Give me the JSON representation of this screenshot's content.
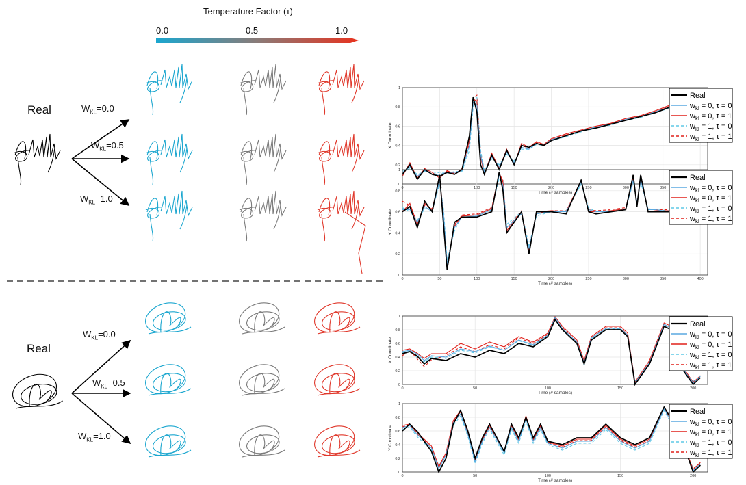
{
  "colorbar": {
    "title": "Temperature Factor (τ)",
    "ticks": [
      "0.0",
      "0.5",
      "1.0"
    ],
    "color_start": "#1aa6cf",
    "color_end": "#e8321e"
  },
  "sections": [
    {
      "real_label": "Real",
      "weights": [
        {
          "prefix": "W",
          "sub": "KL",
          "value": "=0.0"
        },
        {
          "prefix": "W",
          "sub": "KL",
          "value": "=0.5"
        },
        {
          "prefix": "W",
          "sub": "KL",
          "value": "=1.0"
        }
      ]
    },
    {
      "real_label": "Real",
      "weights": [
        {
          "prefix": "W",
          "sub": "KL",
          "value": "=0.0"
        },
        {
          "prefix": "W",
          "sub": "KL",
          "value": "=0.5"
        },
        {
          "prefix": "W",
          "sub": "KL",
          "value": "=1.0"
        }
      ]
    }
  ],
  "signature_colors": [
    "#1aa6cf",
    "#7a7a7a",
    "#e0372a"
  ],
  "chart_data": [
    {
      "type": "line",
      "ylabel": "X Coordinate",
      "xlabel": "Time (# samples)",
      "xlim": [
        0,
        410
      ],
      "ylim": [
        0,
        1
      ],
      "xticks": [
        0,
        50,
        100,
        150,
        200,
        250,
        300,
        350,
        400
      ],
      "yticks": [
        0,
        0.2,
        0.4,
        0.6,
        0.8,
        1
      ],
      "grid": true,
      "legend_placement": "top-right",
      "x": [
        0,
        10,
        20,
        30,
        40,
        50,
        60,
        70,
        80,
        90,
        95,
        100,
        105,
        110,
        120,
        130,
        140,
        150,
        160,
        170,
        180,
        190,
        200,
        220,
        240,
        260,
        280,
        300,
        320,
        340,
        360,
        370,
        375
      ],
      "series": [
        {
          "name": "Real",
          "color": "#000000",
          "dash": false,
          "values": [
            0.1,
            0.2,
            0.05,
            0.15,
            0.1,
            0.08,
            0.12,
            0.1,
            0.15,
            0.5,
            0.9,
            0.75,
            0.2,
            0.1,
            0.3,
            0.15,
            0.35,
            0.2,
            0.4,
            0.38,
            0.42,
            0.4,
            0.45,
            0.5,
            0.55,
            0.58,
            0.62,
            0.66,
            0.7,
            0.74,
            0.8,
            0.86,
            0.9
          ]
        },
        {
          "name": "w_kl = 0, τ = 0",
          "color": "#5aa8e0",
          "dash": false,
          "values": [
            0.12,
            0.18,
            0.08,
            0.14,
            0.1,
            0.1,
            0.12,
            0.12,
            0.14,
            0.4,
            0.85,
            0.82,
            0.3,
            0.12,
            0.28,
            0.18,
            0.33,
            0.22,
            0.38,
            0.36,
            0.42,
            0.4,
            0.46,
            0.5,
            0.55,
            0.59,
            0.62,
            0.67,
            0.7,
            0.75,
            0.8,
            0.85,
            0.88
          ]
        },
        {
          "name": "w_kl = 0, τ = 1",
          "color": "#e0201a",
          "dash": false,
          "values": [
            0.08,
            0.22,
            0.06,
            0.16,
            0.12,
            0.06,
            0.14,
            0.1,
            0.16,
            0.45,
            0.88,
            0.86,
            0.28,
            0.1,
            0.32,
            0.16,
            0.36,
            0.2,
            0.42,
            0.38,
            0.44,
            0.41,
            0.47,
            0.52,
            0.56,
            0.6,
            0.63,
            0.68,
            0.71,
            0.76,
            0.82,
            0.87,
            0.9
          ]
        },
        {
          "name": "w_kl = 1, τ = 0",
          "color": "#5fc8e6",
          "dash": true,
          "values": [
            0.14,
            0.16,
            0.1,
            0.13,
            0.11,
            0.12,
            0.11,
            0.13,
            0.13,
            0.35,
            0.8,
            0.9,
            0.35,
            0.14,
            0.26,
            0.2,
            0.31,
            0.24,
            0.36,
            0.36,
            0.41,
            0.4,
            0.45,
            0.49,
            0.54,
            0.58,
            0.61,
            0.66,
            0.69,
            0.74,
            0.79,
            0.84,
            0.87
          ]
        },
        {
          "name": "w_kl = 1, τ = 1",
          "color": "#e0201a",
          "dash": true,
          "values": [
            0.1,
            0.2,
            0.07,
            0.15,
            0.1,
            0.08,
            0.13,
            0.11,
            0.15,
            0.42,
            0.86,
            0.92,
            0.33,
            0.12,
            0.3,
            0.17,
            0.34,
            0.21,
            0.4,
            0.37,
            0.43,
            0.41,
            0.46,
            0.51,
            0.55,
            0.59,
            0.63,
            0.67,
            0.71,
            0.75,
            0.81,
            0.86,
            0.89
          ]
        }
      ]
    },
    {
      "type": "line",
      "ylabel": "Y Coordinate",
      "xlabel": "Time (# samples)",
      "xlim": [
        0,
        410
      ],
      "ylim": [
        0,
        1
      ],
      "xticks": [
        0,
        50,
        100,
        150,
        200,
        250,
        300,
        350,
        400
      ],
      "yticks": [
        0,
        0.2,
        0.4,
        0.6,
        0.8,
        1
      ],
      "grid": true,
      "legend_placement": "top-right",
      "x": [
        0,
        10,
        20,
        30,
        40,
        50,
        55,
        60,
        70,
        80,
        100,
        120,
        130,
        135,
        140,
        160,
        170,
        180,
        200,
        220,
        240,
        250,
        260,
        280,
        300,
        310,
        315,
        320,
        330,
        340,
        360,
        370,
        375
      ],
      "series": [
        {
          "name": "Real",
          "color": "#000000",
          "dash": false,
          "values": [
            0.6,
            0.65,
            0.45,
            0.7,
            0.6,
            0.95,
            0.5,
            0.05,
            0.5,
            0.55,
            0.55,
            0.6,
            0.98,
            0.8,
            0.4,
            0.6,
            0.2,
            0.6,
            0.6,
            0.58,
            0.9,
            0.6,
            0.58,
            0.6,
            0.62,
            0.95,
            0.65,
            0.95,
            0.6,
            0.6,
            0.6,
            0.6,
            0.6
          ]
        },
        {
          "name": "w_kl = 0, τ = 0",
          "color": "#5aa8e0",
          "dash": false,
          "values": [
            0.62,
            0.62,
            0.5,
            0.65,
            0.6,
            0.9,
            0.6,
            0.1,
            0.45,
            0.55,
            0.56,
            0.62,
            0.95,
            0.85,
            0.45,
            0.58,
            0.25,
            0.58,
            0.6,
            0.6,
            0.88,
            0.62,
            0.6,
            0.6,
            0.62,
            0.9,
            0.68,
            0.9,
            0.62,
            0.62,
            0.6,
            0.62,
            0.6
          ]
        },
        {
          "name": "w_kl = 0, τ = 1",
          "color": "#e0201a",
          "dash": false,
          "values": [
            0.6,
            0.68,
            0.48,
            0.68,
            0.62,
            0.92,
            0.58,
            0.08,
            0.48,
            0.56,
            0.57,
            0.63,
            0.97,
            0.88,
            0.42,
            0.6,
            0.22,
            0.6,
            0.61,
            0.6,
            0.9,
            0.6,
            0.6,
            0.61,
            0.63,
            0.93,
            0.66,
            0.93,
            0.6,
            0.61,
            0.61,
            0.62,
            0.6
          ]
        },
        {
          "name": "w_kl = 1, τ = 0",
          "color": "#5fc8e6",
          "dash": true,
          "values": [
            0.64,
            0.6,
            0.52,
            0.63,
            0.62,
            0.86,
            0.65,
            0.14,
            0.42,
            0.56,
            0.57,
            0.63,
            0.92,
            0.9,
            0.48,
            0.6,
            0.28,
            0.56,
            0.6,
            0.61,
            0.86,
            0.64,
            0.6,
            0.61,
            0.63,
            0.88,
            0.7,
            0.88,
            0.63,
            0.62,
            0.61,
            0.63,
            0.61
          ]
        },
        {
          "name": "w_kl = 1, τ = 1",
          "color": "#e0201a",
          "dash": true,
          "values": [
            0.7,
            0.66,
            0.5,
            0.66,
            0.63,
            0.9,
            0.62,
            0.1,
            0.46,
            0.57,
            0.58,
            0.64,
            0.96,
            0.9,
            0.44,
            0.61,
            0.24,
            0.58,
            0.61,
            0.61,
            0.88,
            0.62,
            0.61,
            0.62,
            0.64,
            0.92,
            0.68,
            0.92,
            0.62,
            0.62,
            0.62,
            0.63,
            0.6
          ]
        }
      ]
    },
    {
      "type": "line",
      "ylabel": "X Coordinate",
      "xlabel": "Time (# samples)",
      "xlim": [
        0,
        210
      ],
      "ylim": [
        0,
        1
      ],
      "xticks": [
        0,
        50,
        100,
        150,
        200
      ],
      "yticks": [
        0,
        0.2,
        0.4,
        0.6,
        0.8,
        1
      ],
      "grid": true,
      "legend_placement": "top-right",
      "x": [
        0,
        5,
        10,
        15,
        20,
        30,
        40,
        50,
        60,
        70,
        80,
        90,
        100,
        105,
        110,
        120,
        125,
        130,
        140,
        150,
        155,
        160,
        170,
        180,
        185,
        190,
        200,
        205
      ],
      "series": [
        {
          "name": "Real",
          "color": "#000000",
          "dash": false,
          "values": [
            0.45,
            0.48,
            0.42,
            0.3,
            0.38,
            0.35,
            0.45,
            0.4,
            0.5,
            0.45,
            0.6,
            0.55,
            0.7,
            0.95,
            0.8,
            0.6,
            0.3,
            0.65,
            0.8,
            0.8,
            0.7,
            0.0,
            0.3,
            0.85,
            0.8,
            0.3,
            0.0,
            0.1
          ]
        },
        {
          "name": "w_kl = 0, τ = 0",
          "color": "#5aa8e0",
          "dash": false,
          "values": [
            0.48,
            0.5,
            0.45,
            0.35,
            0.42,
            0.4,
            0.52,
            0.48,
            0.56,
            0.5,
            0.65,
            0.58,
            0.72,
            0.98,
            0.82,
            0.62,
            0.32,
            0.68,
            0.82,
            0.82,
            0.72,
            0.02,
            0.32,
            0.88,
            0.82,
            0.32,
            0.02,
            0.12
          ]
        },
        {
          "name": "w_kl = 0, τ = 1",
          "color": "#e0201a",
          "dash": false,
          "values": [
            0.5,
            0.52,
            0.46,
            0.38,
            0.45,
            0.45,
            0.6,
            0.52,
            0.62,
            0.55,
            0.7,
            0.62,
            0.75,
            0.99,
            0.85,
            0.65,
            0.35,
            0.7,
            0.85,
            0.85,
            0.75,
            0.03,
            0.35,
            0.9,
            0.85,
            0.35,
            0.03,
            0.13
          ]
        },
        {
          "name": "w_kl = 1, τ = 0",
          "color": "#5fc8e6",
          "dash": true,
          "values": [
            0.46,
            0.49,
            0.4,
            0.33,
            0.4,
            0.38,
            0.5,
            0.46,
            0.55,
            0.5,
            0.64,
            0.57,
            0.71,
            0.96,
            0.81,
            0.6,
            0.28,
            0.66,
            0.81,
            0.81,
            0.7,
            0.05,
            0.3,
            0.86,
            0.8,
            0.28,
            0.05,
            0.1
          ]
        },
        {
          "name": "w_kl = 1, τ = 1",
          "color": "#e0201a",
          "dash": true,
          "values": [
            0.42,
            0.5,
            0.38,
            0.26,
            0.36,
            0.42,
            0.55,
            0.48,
            0.58,
            0.52,
            0.68,
            0.6,
            0.73,
            0.97,
            0.83,
            0.62,
            0.3,
            0.68,
            0.83,
            0.83,
            0.72,
            0.04,
            0.32,
            0.88,
            0.82,
            0.3,
            0.04,
            0.11
          ]
        }
      ]
    },
    {
      "type": "line",
      "ylabel": "Y Coordinate",
      "xlabel": "Time (# samples)",
      "xlim": [
        0,
        210
      ],
      "ylim": [
        0,
        1
      ],
      "xticks": [
        0,
        50,
        100,
        150,
        200
      ],
      "yticks": [
        0,
        0.2,
        0.4,
        0.6,
        0.8,
        1
      ],
      "grid": true,
      "legend_placement": "top-right",
      "x": [
        0,
        5,
        10,
        20,
        25,
        30,
        35,
        40,
        45,
        50,
        55,
        60,
        70,
        75,
        80,
        85,
        90,
        95,
        100,
        110,
        120,
        130,
        140,
        150,
        160,
        170,
        180,
        190,
        200,
        205
      ],
      "series": [
        {
          "name": "Real",
          "color": "#000000",
          "dash": false,
          "values": [
            0.6,
            0.7,
            0.6,
            0.3,
            0.0,
            0.2,
            0.7,
            0.9,
            0.6,
            0.2,
            0.5,
            0.7,
            0.3,
            0.7,
            0.5,
            0.8,
            0.5,
            0.7,
            0.45,
            0.4,
            0.5,
            0.5,
            0.7,
            0.5,
            0.4,
            0.5,
            0.95,
            0.6,
            0.0,
            0.1
          ]
        },
        {
          "name": "w_kl = 0, τ = 0",
          "color": "#5aa8e0",
          "dash": false,
          "values": [
            0.65,
            0.68,
            0.55,
            0.35,
            0.05,
            0.25,
            0.72,
            0.85,
            0.55,
            0.15,
            0.45,
            0.65,
            0.28,
            0.65,
            0.45,
            0.78,
            0.45,
            0.65,
            0.42,
            0.35,
            0.45,
            0.45,
            0.65,
            0.45,
            0.35,
            0.45,
            0.92,
            0.55,
            0.02,
            0.12
          ]
        },
        {
          "name": "w_kl = 0, τ = 1",
          "color": "#e0201a",
          "dash": false,
          "values": [
            0.68,
            0.7,
            0.58,
            0.38,
            0.08,
            0.28,
            0.75,
            0.9,
            0.58,
            0.18,
            0.48,
            0.68,
            0.3,
            0.68,
            0.48,
            0.82,
            0.48,
            0.68,
            0.44,
            0.38,
            0.48,
            0.48,
            0.68,
            0.48,
            0.38,
            0.48,
            0.95,
            0.58,
            0.04,
            0.14
          ]
        },
        {
          "name": "w_kl = 1, τ = 0",
          "color": "#5fc8e6",
          "dash": true,
          "values": [
            0.62,
            0.66,
            0.52,
            0.32,
            0.1,
            0.22,
            0.68,
            0.82,
            0.52,
            0.12,
            0.42,
            0.62,
            0.25,
            0.62,
            0.42,
            0.75,
            0.42,
            0.62,
            0.4,
            0.32,
            0.42,
            0.42,
            0.62,
            0.42,
            0.32,
            0.42,
            0.9,
            0.52,
            0.06,
            0.1
          ]
        },
        {
          "name": "w_kl = 1, τ = 1",
          "color": "#e0201a",
          "dash": true,
          "values": [
            0.66,
            0.69,
            0.56,
            0.36,
            0.06,
            0.26,
            0.73,
            0.88,
            0.56,
            0.16,
            0.46,
            0.66,
            0.29,
            0.66,
            0.46,
            0.8,
            0.46,
            0.66,
            0.43,
            0.36,
            0.46,
            0.46,
            0.66,
            0.46,
            0.36,
            0.46,
            0.93,
            0.56,
            0.05,
            0.13
          ]
        }
      ]
    }
  ]
}
